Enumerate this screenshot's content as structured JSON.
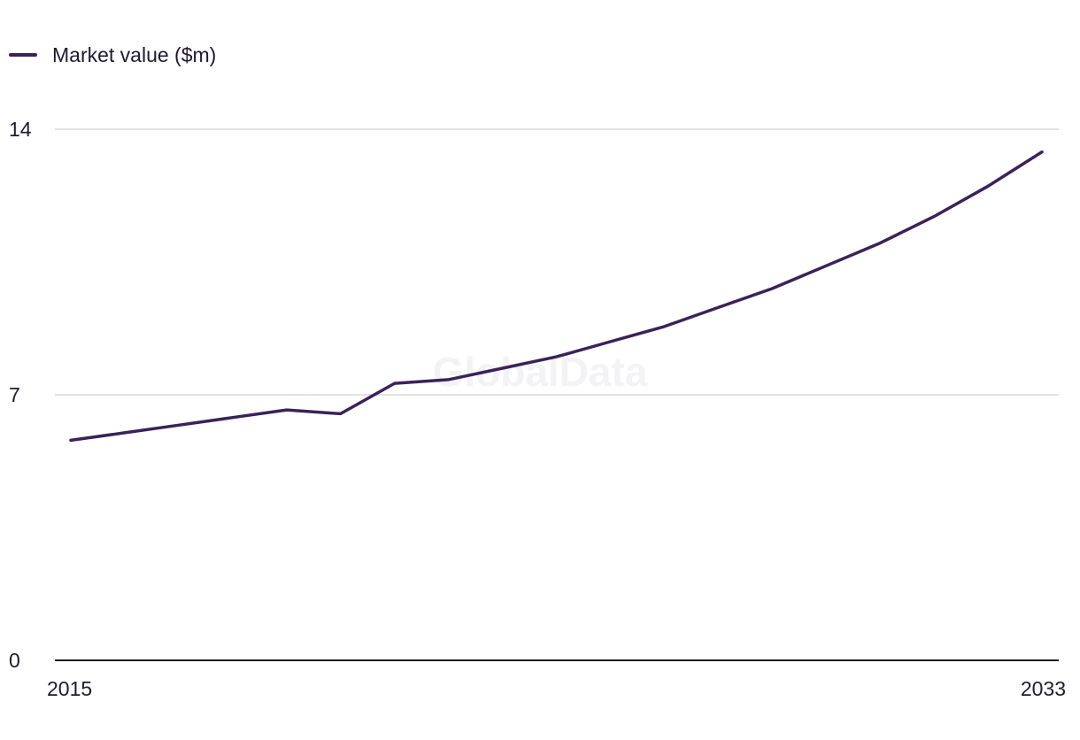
{
  "chart_data": {
    "type": "line",
    "title": "",
    "xlabel": "",
    "ylabel": "",
    "x": [
      2015,
      2016,
      2017,
      2018,
      2019,
      2020,
      2021,
      2022,
      2023,
      2024,
      2025,
      2026,
      2027,
      2028,
      2029,
      2030,
      2031,
      2032,
      2033
    ],
    "series": [
      {
        "name": "Market value ($m)",
        "color": "#3b2259",
        "values": [
          5.8,
          6.0,
          6.2,
          6.4,
          6.6,
          6.5,
          7.3,
          7.4,
          7.7,
          8.0,
          8.4,
          8.8,
          9.3,
          9.8,
          10.4,
          11.0,
          11.7,
          12.5,
          13.4
        ]
      }
    ],
    "ylim": [
      0,
      14
    ],
    "y_ticks": [
      "0",
      "7",
      "14"
    ],
    "x_tick_labels": [
      "2015",
      "2033"
    ],
    "grid": true,
    "legend_position": "top-left",
    "watermark": "GlobalData",
    "colors": {
      "grid": "#d9d9de",
      "axis": "#1f1a2e",
      "text": "#1f1a2e"
    }
  }
}
